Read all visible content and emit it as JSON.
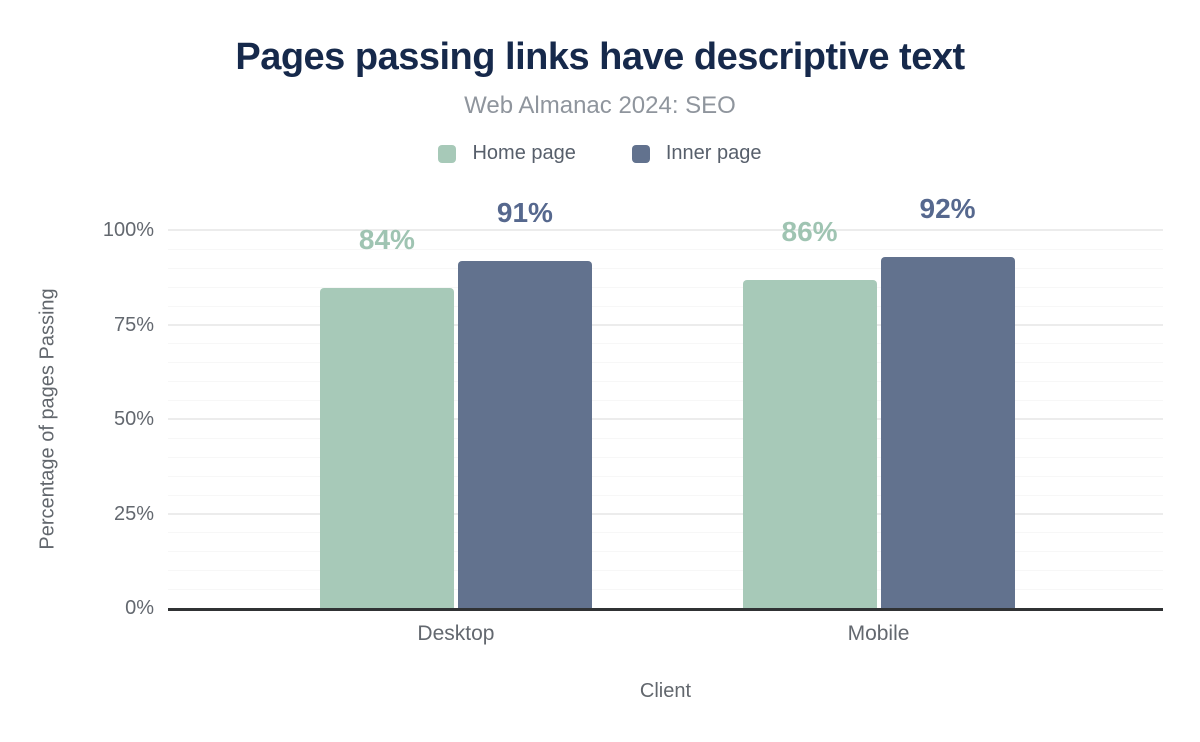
{
  "title": "Pages passing links have descriptive text",
  "subtitle": "Web Almanac 2024: SEO",
  "colors": {
    "background": "#ffffff",
    "title": "#16294b",
    "subtitle": "#8f959d",
    "axis_text": "#63686f",
    "axis_line": "#303234",
    "grid_major": "#ececec",
    "grid_minor": "#f7f7f7",
    "home_page_green": "#a7c9b8",
    "inner_page_blue": "#62728e"
  },
  "chart_data": {
    "type": "bar",
    "title": "Pages passing links have descriptive text",
    "subtitle": "Web Almanac 2024: SEO",
    "categories": [
      "Desktop",
      "Mobile"
    ],
    "series": [
      {
        "name": "Home page",
        "color": "#a7c9b8",
        "label_color": "#9fc4b2",
        "values": [
          84,
          86
        ],
        "data_labels": [
          "84%",
          "86%"
        ]
      },
      {
        "name": "Inner page",
        "color": "#62728e",
        "label_color": "#56688e",
        "values": [
          91,
          92
        ],
        "data_labels": [
          "91%",
          "92%"
        ]
      }
    ],
    "xlabel": "Client",
    "ylabel": "Percentage of pages Passing",
    "ylim": [
      0,
      100
    ],
    "yticks": [
      0,
      25,
      50,
      75,
      100
    ],
    "ytick_labels": [
      "0%",
      "25%",
      "50%",
      "75%",
      "100%"
    ],
    "grid": "horizontal, minor every 5%, major every 25%",
    "legend_position": "top center"
  }
}
